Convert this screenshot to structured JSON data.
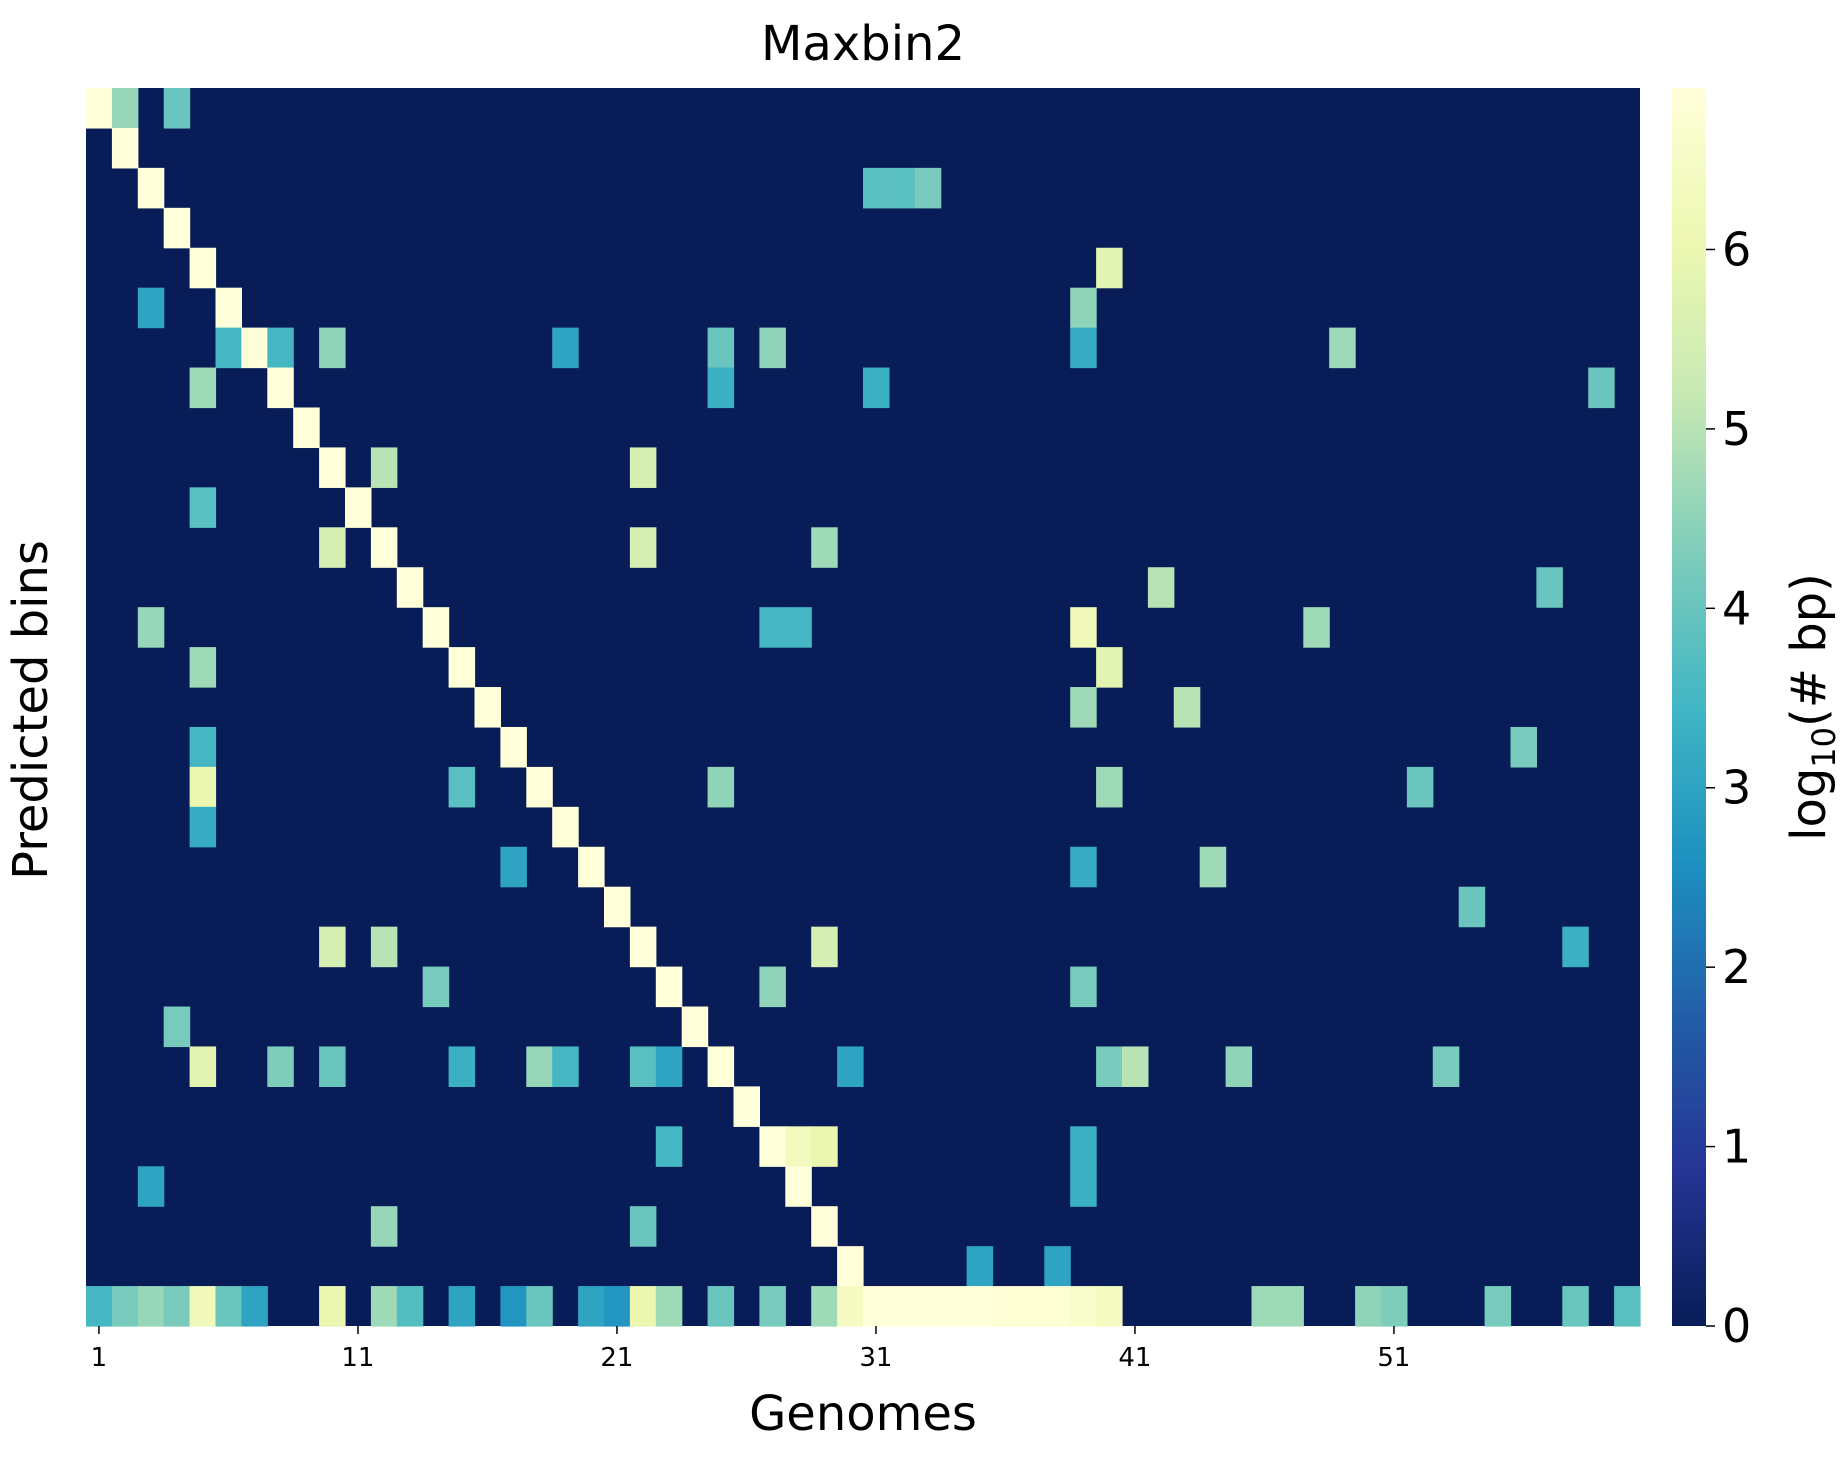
{
  "chart_data": {
    "type": "heatmap",
    "title": "Maxbin2",
    "xlabel": "Genomes",
    "ylabel": "Predicted bins",
    "x_tick_labels": [
      "1",
      "11",
      "21",
      "31",
      "41",
      "51"
    ],
    "x_tick_positions": [
      1,
      11,
      21,
      31,
      41,
      51
    ],
    "n_genomes": 60,
    "n_bins": 31,
    "colormap": "YlGnBu",
    "colorbar": {
      "label_prefix": "log",
      "label_sub": "10",
      "label_suffix": "(# bp)",
      "range": [
        0,
        6.9
      ],
      "ticks": [
        "0",
        "1",
        "2",
        "3",
        "4",
        "5",
        "6"
      ],
      "tick_values": [
        0,
        1,
        2,
        3,
        4,
        5,
        6
      ]
    },
    "diagonal_value": 6.9,
    "background_value": 0,
    "cells": [
      [
        0,
        1,
        4.6
      ],
      [
        0,
        3,
        4.0
      ],
      [
        2,
        30,
        3.8
      ],
      [
        2,
        31,
        3.8
      ],
      [
        2,
        32,
        4.2
      ],
      [
        4,
        39,
        5.8
      ],
      [
        5,
        2,
        3.0
      ],
      [
        5,
        38,
        4.5
      ],
      [
        6,
        5,
        3.5
      ],
      [
        6,
        7,
        3.5
      ],
      [
        6,
        9,
        4.5
      ],
      [
        6,
        18,
        3.0
      ],
      [
        6,
        24,
        4.0
      ],
      [
        6,
        26,
        4.5
      ],
      [
        6,
        38,
        3.2
      ],
      [
        6,
        48,
        4.7
      ],
      [
        7,
        4,
        4.7
      ],
      [
        7,
        24,
        3.3
      ],
      [
        7,
        30,
        3.3
      ],
      [
        7,
        58,
        4.0
      ],
      [
        9,
        11,
        5.0
      ],
      [
        9,
        21,
        5.5
      ],
      [
        10,
        4,
        3.8
      ],
      [
        11,
        9,
        5.5
      ],
      [
        11,
        21,
        5.5
      ],
      [
        11,
        28,
        4.7
      ],
      [
        12,
        41,
        5.0
      ],
      [
        12,
        56,
        4.0
      ],
      [
        13,
        2,
        4.6
      ],
      [
        13,
        26,
        3.5
      ],
      [
        13,
        27,
        3.5
      ],
      [
        13,
        38,
        6.2
      ],
      [
        13,
        47,
        4.7
      ],
      [
        14,
        4,
        4.7
      ],
      [
        14,
        39,
        5.8
      ],
      [
        15,
        38,
        4.7
      ],
      [
        15,
        42,
        5.0
      ],
      [
        16,
        4,
        3.5
      ],
      [
        16,
        55,
        4.2
      ],
      [
        17,
        4,
        6.0
      ],
      [
        17,
        14,
        3.8
      ],
      [
        17,
        24,
        4.5
      ],
      [
        17,
        39,
        4.7
      ],
      [
        17,
        51,
        4.0
      ],
      [
        18,
        4,
        3.2
      ],
      [
        19,
        16,
        3.0
      ],
      [
        19,
        38,
        3.2
      ],
      [
        19,
        43,
        4.7
      ],
      [
        20,
        53,
        4.0
      ],
      [
        21,
        9,
        5.5
      ],
      [
        21,
        11,
        5.0
      ],
      [
        21,
        28,
        5.5
      ],
      [
        21,
        57,
        3.3
      ],
      [
        22,
        13,
        4.2
      ],
      [
        22,
        26,
        4.5
      ],
      [
        22,
        38,
        4.2
      ],
      [
        23,
        3,
        4.2
      ],
      [
        24,
        4,
        5.8
      ],
      [
        24,
        7,
        4.3
      ],
      [
        24,
        9,
        4.0
      ],
      [
        24,
        14,
        3.3
      ],
      [
        24,
        17,
        4.6
      ],
      [
        24,
        18,
        3.5
      ],
      [
        24,
        21,
        3.8
      ],
      [
        24,
        22,
        3.0
      ],
      [
        24,
        29,
        3.0
      ],
      [
        24,
        39,
        4.2
      ],
      [
        24,
        40,
        5.0
      ],
      [
        24,
        44,
        4.5
      ],
      [
        24,
        52,
        4.2
      ],
      [
        26,
        22,
        3.5
      ],
      [
        26,
        27,
        6.3
      ],
      [
        26,
        28,
        6.0
      ],
      [
        26,
        38,
        3.3
      ],
      [
        27,
        2,
        3.0
      ],
      [
        27,
        38,
        3.3
      ],
      [
        28,
        11,
        4.6
      ],
      [
        28,
        21,
        4.0
      ],
      [
        29,
        34,
        3.0
      ],
      [
        29,
        37,
        3.0
      ],
      [
        30,
        0,
        3.5
      ],
      [
        30,
        1,
        4.2
      ],
      [
        30,
        2,
        4.6
      ],
      [
        30,
        3,
        4.2
      ],
      [
        30,
        4,
        6.2
      ],
      [
        30,
        5,
        4.0
      ],
      [
        30,
        6,
        3.0
      ],
      [
        30,
        9,
        6.0
      ],
      [
        30,
        11,
        4.7
      ],
      [
        30,
        12,
        3.7
      ],
      [
        30,
        14,
        3.0
      ],
      [
        30,
        16,
        2.7
      ],
      [
        30,
        17,
        4.0
      ],
      [
        30,
        19,
        3.0
      ],
      [
        30,
        20,
        2.7
      ],
      [
        30,
        21,
        6.0
      ],
      [
        30,
        22,
        4.7
      ],
      [
        30,
        24,
        4.0
      ],
      [
        30,
        26,
        4.2
      ],
      [
        30,
        28,
        4.7
      ],
      [
        30,
        29,
        6.4
      ],
      [
        30,
        30,
        6.9
      ],
      [
        30,
        31,
        6.9
      ],
      [
        30,
        32,
        6.9
      ],
      [
        30,
        33,
        6.9
      ],
      [
        30,
        34,
        6.9
      ],
      [
        30,
        35,
        6.8
      ],
      [
        30,
        36,
        6.8
      ],
      [
        30,
        37,
        6.8
      ],
      [
        30,
        38,
        6.6
      ],
      [
        30,
        39,
        6.4
      ],
      [
        30,
        45,
        4.7
      ],
      [
        30,
        46,
        4.7
      ],
      [
        30,
        49,
        4.5
      ],
      [
        30,
        50,
        4.3
      ],
      [
        30,
        54,
        4.2
      ],
      [
        30,
        57,
        4.0
      ],
      [
        30,
        59,
        3.8
      ]
    ]
  }
}
